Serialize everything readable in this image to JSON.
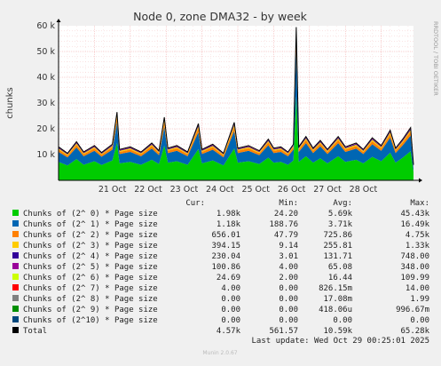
{
  "title": "Node 0, zone DMA32 - by week",
  "side_label": "RRDTOOL / TOBI OETIKER",
  "footer": "Munin 2.0.67",
  "last_update": "Last update: Wed Oct 29 00:25:01 2025",
  "columns": [
    "Cur:",
    "Min:",
    "Avg:",
    "Max:"
  ],
  "chart_data": {
    "type": "area",
    "title": "Node 0, zone DMA32 - by week",
    "ylabel": "chunks",
    "xlabel": "",
    "ylim": [
      0,
      60000
    ],
    "yticks": [
      {
        "v": 10000,
        "label": "10 k"
      },
      {
        "v": 20000,
        "label": "20 k"
      },
      {
        "v": 30000,
        "label": "30 k"
      },
      {
        "v": 40000,
        "label": "40 k"
      },
      {
        "v": 50000,
        "label": "50 k"
      },
      {
        "v": 60000,
        "label": "60 k"
      }
    ],
    "xlabels": [
      "21 Oct",
      "22 Oct",
      "23 Oct",
      "24 Oct",
      "25 Oct",
      "26 Oct",
      "27 Oct",
      "28 Oct"
    ],
    "grid": true,
    "stacked": true,
    "series_colors": [
      "#00cc00",
      "#0066b3",
      "#ff8000",
      "#ffcc00",
      "#330099",
      "#990099",
      "#ccff00",
      "#ff0000",
      "#808080",
      "#008f00",
      "#00487d"
    ],
    "total": {
      "name": "Total",
      "color": "#000000"
    },
    "total_profile": [
      {
        "day": 0.0,
        "v": 13000
      },
      {
        "day": 0.25,
        "v": 10500
      },
      {
        "day": 0.5,
        "v": 15000
      },
      {
        "day": 0.7,
        "v": 11000
      },
      {
        "day": 1.0,
        "v": 13500
      },
      {
        "day": 1.2,
        "v": 10800
      },
      {
        "day": 1.5,
        "v": 14000
      },
      {
        "day": 1.63,
        "v": 26500
      },
      {
        "day": 1.7,
        "v": 12000
      },
      {
        "day": 2.0,
        "v": 13000
      },
      {
        "day": 2.3,
        "v": 11000
      },
      {
        "day": 2.6,
        "v": 14500
      },
      {
        "day": 2.8,
        "v": 11500
      },
      {
        "day": 2.95,
        "v": 24500
      },
      {
        "day": 3.05,
        "v": 12500
      },
      {
        "day": 3.3,
        "v": 13500
      },
      {
        "day": 3.6,
        "v": 11000
      },
      {
        "day": 3.9,
        "v": 22000
      },
      {
        "day": 4.0,
        "v": 12000
      },
      {
        "day": 4.3,
        "v": 14000
      },
      {
        "day": 4.6,
        "v": 10500
      },
      {
        "day": 4.9,
        "v": 22500
      },
      {
        "day": 5.0,
        "v": 12500
      },
      {
        "day": 5.3,
        "v": 13500
      },
      {
        "day": 5.6,
        "v": 11500
      },
      {
        "day": 5.85,
        "v": 16000
      },
      {
        "day": 6.0,
        "v": 12500
      },
      {
        "day": 6.2,
        "v": 13000
      },
      {
        "day": 6.4,
        "v": 11000
      },
      {
        "day": 6.55,
        "v": 14000
      },
      {
        "day": 6.63,
        "v": 59500
      },
      {
        "day": 6.7,
        "v": 13000
      },
      {
        "day": 6.9,
        "v": 17000
      },
      {
        "day": 7.1,
        "v": 12500
      },
      {
        "day": 7.3,
        "v": 15500
      },
      {
        "day": 7.5,
        "v": 12000
      },
      {
        "day": 7.8,
        "v": 17000
      },
      {
        "day": 8.0,
        "v": 13000
      },
      {
        "day": 8.3,
        "v": 14500
      },
      {
        "day": 8.5,
        "v": 12000
      },
      {
        "day": 8.75,
        "v": 16500
      },
      {
        "day": 9.0,
        "v": 13500
      },
      {
        "day": 9.25,
        "v": 19500
      },
      {
        "day": 9.4,
        "v": 12500
      },
      {
        "day": 9.6,
        "v": 16000
      },
      {
        "day": 9.82,
        "v": 20500
      },
      {
        "day": 9.9,
        "v": 6000
      }
    ],
    "series": [
      {
        "name": "Chunks of (2^ 0) * Page size",
        "cur": "1.98k",
        "min": "24.20",
        "avg": "5.69k",
        "max": "45.43k"
      },
      {
        "name": "Chunks of (2^ 1) * Page size",
        "cur": "1.18k",
        "min": "188.76",
        "avg": "3.71k",
        "max": "16.49k"
      },
      {
        "name": "Chunks of (2^ 2) * Page size",
        "cur": "656.01",
        "min": "47.79",
        "avg": "725.86",
        "max": "4.75k"
      },
      {
        "name": "Chunks of (2^ 3) * Page size",
        "cur": "394.15",
        "min": "9.14",
        "avg": "255.81",
        "max": "1.33k"
      },
      {
        "name": "Chunks of (2^ 4) * Page size",
        "cur": "230.04",
        "min": "3.01",
        "avg": "131.71",
        "max": "748.00"
      },
      {
        "name": "Chunks of (2^ 5) * Page size",
        "cur": "100.86",
        "min": "4.00",
        "avg": "65.08",
        "max": "348.00"
      },
      {
        "name": "Chunks of (2^ 6) * Page size",
        "cur": "24.69",
        "min": "2.00",
        "avg": "16.44",
        "max": "109.99"
      },
      {
        "name": "Chunks of (2^ 7) * Page size",
        "cur": "4.00",
        "min": "0.00",
        "avg": "826.15m",
        "max": "14.00"
      },
      {
        "name": "Chunks of (2^ 8) * Page size",
        "cur": "0.00",
        "min": "0.00",
        "avg": "17.08m",
        "max": "1.99"
      },
      {
        "name": "Chunks of (2^ 9) * Page size",
        "cur": "0.00",
        "min": "0.00",
        "avg": "418.06u",
        "max": "996.67m"
      },
      {
        "name": "Chunks of (2^10) * Page size",
        "cur": "0.00",
        "min": "0.00",
        "avg": "0.00",
        "max": "0.00"
      },
      {
        "name": "Total",
        "cur": "4.57k",
        "min": "561.57",
        "avg": "10.59k",
        "max": "65.28k"
      }
    ]
  }
}
